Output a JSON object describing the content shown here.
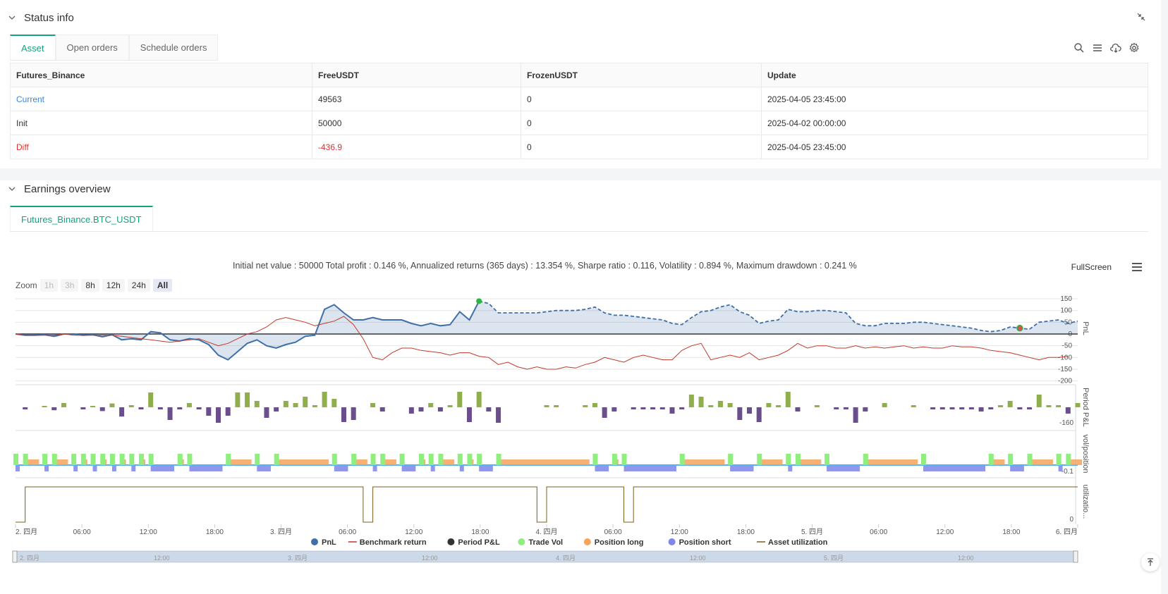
{
  "status": {
    "title": "Status info",
    "tabs": [
      "Asset",
      "Open orders",
      "Schedule orders"
    ],
    "table": {
      "headers": [
        "Futures_Binance",
        "FreeUSDT",
        "FrozenUSDT",
        "Update"
      ],
      "rows": [
        {
          "label": "Current",
          "free": "49563",
          "frozen": "0",
          "update": "2025-04-05 23:45:00"
        },
        {
          "label": "Init",
          "free": "50000",
          "frozen": "0",
          "update": "2025-04-02 00:00:00"
        },
        {
          "label": "Diff",
          "free": "-436.9",
          "frozen": "0",
          "update": "2025-04-05 23:45:00"
        }
      ]
    }
  },
  "earnings": {
    "title": "Earnings overview",
    "tab": "Futures_Binance.BTC_USDT",
    "summary": "Initial net value : 50000 Total profit : 0.146 %, Annualized returns (365 days) : 13.354 %, Sharpe ratio : 0.116, Volatility : 0.894 %, Maximum drawdown : 0.241 %",
    "fullscreen": "FullScreen",
    "zoom": {
      "label": "Zoom",
      "buttons": [
        "1h",
        "3h",
        "8h",
        "12h",
        "24h",
        "All"
      ]
    }
  },
  "chart_data": {
    "type": "line",
    "x_ticks": [
      "2. 四月",
      "06:00",
      "12:00",
      "18:00",
      "3. 四月",
      "06:00",
      "12:00",
      "18:00",
      "4. 四月",
      "06:00",
      "12:00",
      "18:00",
      "5. 四月",
      "06:00",
      "12:00",
      "18:00",
      "6. 四月"
    ],
    "navigator_ticks": [
      "2. 四月",
      "12:00",
      "3. 四月",
      "12:00",
      "4. 四月",
      "12:00",
      "5. 四月",
      "12:00"
    ],
    "panes": [
      {
        "ylabel": "PnL",
        "y_ticks": [
          "150",
          "100",
          "50",
          "0",
          "-50",
          "-100",
          "-150",
          "-200"
        ]
      },
      {
        "ylabel": "Period P&L",
        "y_ticks": [
          "-160"
        ]
      },
      {
        "ylabel": "vol/position",
        "y_ticks": [
          "-0.1"
        ]
      },
      {
        "ylabel": "utilizatio...",
        "y_ticks": [
          "0"
        ]
      }
    ],
    "series": [
      {
        "name": "PnL",
        "color": "#3f6fa8",
        "values": [
          0,
          -5,
          -5,
          -3,
          -10,
          0,
          0,
          -5,
          -3,
          -12,
          -3,
          -25,
          -20,
          -25,
          10,
          5,
          -25,
          -30,
          -20,
          -25,
          -45,
          -90,
          -110,
          -75,
          -40,
          -25,
          -50,
          -60,
          -45,
          -35,
          -10,
          -5,
          105,
          125,
          90,
          60,
          60,
          70,
          60,
          60,
          60,
          45,
          35,
          45,
          35,
          40,
          95,
          60,
          140,
          130,
          90,
          90,
          90,
          90,
          90,
          95,
          100,
          100,
          100,
          105,
          115,
          90,
          80,
          80,
          75,
          70,
          65,
          60,
          45,
          40,
          70,
          95,
          100,
          115,
          125,
          95,
          80,
          45,
          55,
          60,
          105,
          95,
          95,
          100,
          100,
          95,
          90,
          45,
          35,
          35,
          45,
          45,
          45,
          50,
          50,
          45,
          40,
          35,
          30,
          25,
          15,
          10,
          15,
          30,
          25,
          20,
          50,
          55,
          60,
          45,
          55
        ]
      },
      {
        "name": "Benchmark return",
        "color": "#c0392b",
        "values": [
          0,
          -5,
          -5,
          -5,
          -5,
          0,
          -5,
          -5,
          -5,
          -5,
          -5,
          -10,
          -15,
          -20,
          -25,
          -30,
          -35,
          -30,
          -25,
          -20,
          -35,
          -50,
          -40,
          -20,
          0,
          10,
          30,
          60,
          70,
          60,
          50,
          35,
          45,
          55,
          75,
          40,
          -20,
          -100,
          -110,
          -80,
          -60,
          -60,
          -70,
          -75,
          -80,
          -90,
          -80,
          -80,
          -95,
          -100,
          -130,
          -120,
          -140,
          -150,
          -140,
          -150,
          -150,
          -140,
          -145,
          -130,
          -120,
          -100,
          -110,
          -120,
          -100,
          -90,
          -100,
          -110,
          -110,
          -70,
          -50,
          -40,
          -110,
          -100,
          -90,
          -100,
          -80,
          -110,
          -100,
          -90,
          -70,
          -40,
          -60,
          -50,
          -50,
          -60,
          -60,
          -50,
          -60,
          -55,
          -60,
          -55,
          -50,
          -60,
          -55,
          -60,
          -60,
          -50,
          -55,
          -55,
          -60,
          -70,
          -75,
          -80,
          -90,
          -100,
          -110,
          -100,
          -100,
          -95
        ]
      }
    ],
    "legend": [
      "PnL",
      "Benchmark return",
      "Period P&L",
      "Trade Vol",
      "Position long",
      "Position short",
      "Asset utilization"
    ],
    "legend_colors": [
      "#3f6fa8",
      "#c0392b",
      "#333333",
      "#90ee7e",
      "#f7a35c",
      "#8085e9",
      "#7a5c1e"
    ]
  }
}
